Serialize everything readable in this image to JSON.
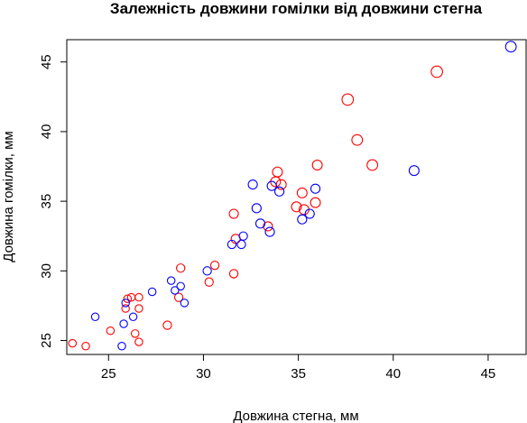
{
  "chart_data": {
    "type": "scatter",
    "title": "Залежність довжини гомілки від довжини стегна",
    "xlabel": "Довжина стегна, мм",
    "ylabel": "Довжина гомілки, мм",
    "xlim": [
      22.8,
      47.0
    ],
    "ylim": [
      24.0,
      46.6
    ],
    "xticks": [
      25,
      30,
      35,
      40,
      45
    ],
    "yticks": [
      25,
      30,
      35,
      40,
      45
    ],
    "grid": false,
    "series": [
      {
        "color": "#ff0000",
        "points": [
          {
            "x": 23.1,
            "y": 24.8,
            "size": 1.0
          },
          {
            "x": 23.8,
            "y": 24.6,
            "size": 1.0
          },
          {
            "x": 25.1,
            "y": 25.7,
            "size": 1.0
          },
          {
            "x": 25.9,
            "y": 27.3,
            "size": 1.0
          },
          {
            "x": 26.0,
            "y": 28.0,
            "size": 1.0
          },
          {
            "x": 26.2,
            "y": 28.1,
            "size": 1.0
          },
          {
            "x": 26.4,
            "y": 25.5,
            "size": 1.0
          },
          {
            "x": 26.6,
            "y": 28.1,
            "size": 1.0
          },
          {
            "x": 26.6,
            "y": 27.3,
            "size": 1.0
          },
          {
            "x": 26.6,
            "y": 24.9,
            "size": 1.0
          },
          {
            "x": 28.1,
            "y": 26.1,
            "size": 1.1
          },
          {
            "x": 28.7,
            "y": 28.1,
            "size": 1.1
          },
          {
            "x": 28.8,
            "y": 30.2,
            "size": 1.1
          },
          {
            "x": 30.3,
            "y": 29.2,
            "size": 1.1
          },
          {
            "x": 30.6,
            "y": 30.4,
            "size": 1.1
          },
          {
            "x": 31.6,
            "y": 29.8,
            "size": 1.1
          },
          {
            "x": 31.6,
            "y": 34.1,
            "size": 1.2
          },
          {
            "x": 31.7,
            "y": 32.3,
            "size": 1.2
          },
          {
            "x": 33.4,
            "y": 33.2,
            "size": 1.2
          },
          {
            "x": 33.8,
            "y": 36.4,
            "size": 1.3
          },
          {
            "x": 33.9,
            "y": 37.1,
            "size": 1.3
          },
          {
            "x": 34.1,
            "y": 36.2,
            "size": 1.3
          },
          {
            "x": 34.9,
            "y": 34.6,
            "size": 1.3
          },
          {
            "x": 35.2,
            "y": 35.6,
            "size": 1.3
          },
          {
            "x": 35.3,
            "y": 34.4,
            "size": 1.3
          },
          {
            "x": 35.9,
            "y": 34.9,
            "size": 1.3
          },
          {
            "x": 36.0,
            "y": 37.6,
            "size": 1.3
          },
          {
            "x": 37.6,
            "y": 42.3,
            "size": 1.5
          },
          {
            "x": 38.1,
            "y": 39.4,
            "size": 1.4
          },
          {
            "x": 38.9,
            "y": 37.6,
            "size": 1.4
          },
          {
            "x": 42.3,
            "y": 44.3,
            "size": 1.5
          }
        ]
      },
      {
        "color": "#0000ff",
        "points": [
          {
            "x": 24.3,
            "y": 26.7,
            "size": 1.0
          },
          {
            "x": 25.7,
            "y": 24.6,
            "size": 1.0
          },
          {
            "x": 25.8,
            "y": 26.2,
            "size": 1.0
          },
          {
            "x": 25.9,
            "y": 27.7,
            "size": 1.0
          },
          {
            "x": 26.3,
            "y": 26.7,
            "size": 1.0
          },
          {
            "x": 27.3,
            "y": 28.5,
            "size": 1.0
          },
          {
            "x": 28.3,
            "y": 29.3,
            "size": 1.0
          },
          {
            "x": 28.5,
            "y": 28.6,
            "size": 1.0
          },
          {
            "x": 28.8,
            "y": 28.9,
            "size": 1.0
          },
          {
            "x": 29.0,
            "y": 27.7,
            "size": 1.0
          },
          {
            "x": 30.2,
            "y": 30.0,
            "size": 1.1
          },
          {
            "x": 31.5,
            "y": 31.9,
            "size": 1.1
          },
          {
            "x": 32.0,
            "y": 31.9,
            "size": 1.1
          },
          {
            "x": 32.1,
            "y": 32.5,
            "size": 1.1
          },
          {
            "x": 32.6,
            "y": 36.2,
            "size": 1.2
          },
          {
            "x": 32.8,
            "y": 34.5,
            "size": 1.2
          },
          {
            "x": 33.0,
            "y": 33.4,
            "size": 1.2
          },
          {
            "x": 33.5,
            "y": 32.8,
            "size": 1.2
          },
          {
            "x": 33.6,
            "y": 36.1,
            "size": 1.2
          },
          {
            "x": 34.0,
            "y": 35.7,
            "size": 1.2
          },
          {
            "x": 35.2,
            "y": 33.7,
            "size": 1.2
          },
          {
            "x": 35.6,
            "y": 34.1,
            "size": 1.2
          },
          {
            "x": 35.9,
            "y": 35.9,
            "size": 1.2
          },
          {
            "x": 41.1,
            "y": 37.2,
            "size": 1.3
          },
          {
            "x": 46.2,
            "y": 46.1,
            "size": 1.4
          }
        ]
      }
    ]
  }
}
